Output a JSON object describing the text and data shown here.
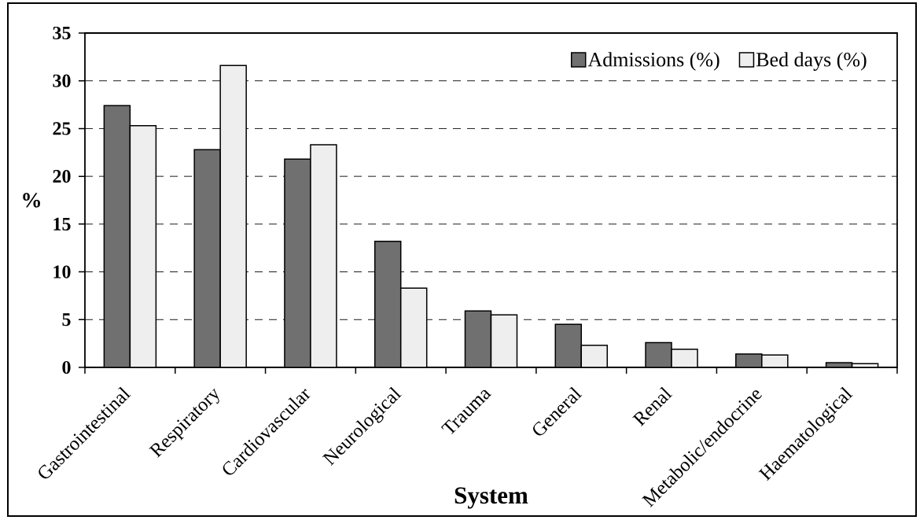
{
  "chart_data": {
    "type": "bar",
    "xlabel": "System",
    "ylabel": "%",
    "categories": [
      "Gastrointestinal",
      "Respiratory",
      "Cardiovascular",
      "Neurological",
      "Trauma",
      "General",
      "Renal",
      "Metabolic/endocrine",
      "Haematological"
    ],
    "series": [
      {
        "name": "Admissions (%)",
        "color": "#707070",
        "values": [
          27.4,
          22.8,
          21.8,
          13.2,
          5.9,
          4.5,
          2.6,
          1.4,
          0.5
        ]
      },
      {
        "name": "Bed days (%)",
        "color": "#eeeeee",
        "values": [
          25.3,
          31.6,
          23.3,
          8.3,
          5.5,
          2.3,
          1.9,
          1.3,
          0.4
        ]
      }
    ],
    "ylim": [
      0,
      35
    ],
    "yticks": [
      0,
      5,
      10,
      15,
      20,
      25,
      30,
      35
    ],
    "grid": "y",
    "legend": "top right"
  }
}
